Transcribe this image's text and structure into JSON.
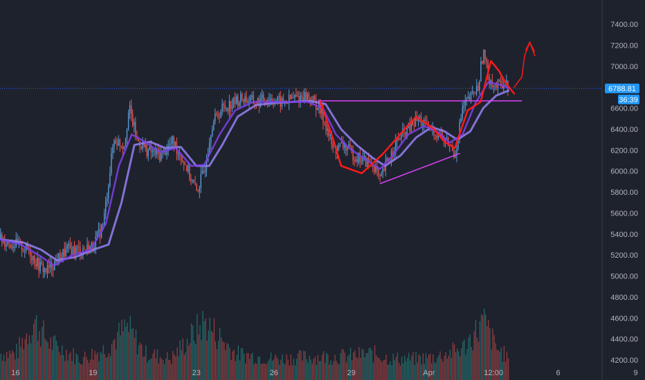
{
  "chart_data": {
    "type": "candlestick",
    "title": "",
    "xlabel": "",
    "ylabel": "",
    "ylim": [
      4150,
      7550
    ],
    "y_ticks": [
      4200,
      4400,
      4600,
      4800,
      5000,
      5200,
      5400,
      5600,
      5800,
      6000,
      6200,
      6400,
      6600,
      6800,
      7000,
      7200,
      7400
    ],
    "y_tick_labels": [
      "4200.00",
      "4400.00",
      "4600.00",
      "4800.00",
      "5000.00",
      "5200.00",
      "5400.00",
      "5600.00",
      "5800.00",
      "6000.00",
      "6200.00",
      "6400.00",
      "6600.00",
      "6800.00",
      "7000.00",
      "7200.00",
      "7400.00"
    ],
    "x_range_days": [
      15.4,
      11.9
    ],
    "x_ticks": [
      {
        "label": "16",
        "day": 16
      },
      {
        "label": "19",
        "day": 19
      },
      {
        "label": "23",
        "day": 23
      },
      {
        "label": "26",
        "day": 26
      },
      {
        "label": "29",
        "day": 29
      },
      {
        "label": "Apr",
        "day": 32
      },
      {
        "label": "12:00",
        "day": 34.5
      },
      {
        "label": "6",
        "day": 37
      },
      {
        "label": "9",
        "day": 40
      }
    ],
    "price_path": [
      [
        15.4,
        5350
      ],
      [
        16.0,
        5300
      ],
      [
        16.5,
        5250
      ],
      [
        16.9,
        5100
      ],
      [
        17.2,
        5050
      ],
      [
        17.6,
        5150
      ],
      [
        18.0,
        5250
      ],
      [
        18.5,
        5250
      ],
      [
        19.0,
        5280
      ],
      [
        19.4,
        5500
      ],
      [
        19.8,
        6300
      ],
      [
        20.2,
        6250
      ],
      [
        20.4,
        6600
      ],
      [
        20.7,
        6300
      ],
      [
        21.1,
        6200
      ],
      [
        21.6,
        6150
      ],
      [
        22.1,
        6280
      ],
      [
        22.6,
        6050
      ],
      [
        23.0,
        5800
      ],
      [
        23.3,
        6000
      ],
      [
        23.6,
        6450
      ],
      [
        24.0,
        6600
      ],
      [
        24.4,
        6650
      ],
      [
        24.8,
        6700
      ],
      [
        25.3,
        6650
      ],
      [
        25.8,
        6700
      ],
      [
        26.3,
        6650
      ],
      [
        26.8,
        6700
      ],
      [
        27.3,
        6720
      ],
      [
        27.7,
        6620
      ],
      [
        28.0,
        6450
      ],
      [
        28.3,
        6200
      ],
      [
        28.7,
        6250
      ],
      [
        29.1,
        6150
      ],
      [
        29.5,
        6100
      ],
      [
        29.9,
        6050
      ],
      [
        30.1,
        5900
      ],
      [
        30.4,
        6100
      ],
      [
        30.8,
        6300
      ],
      [
        31.2,
        6400
      ],
      [
        31.6,
        6500
      ],
      [
        32.0,
        6400
      ],
      [
        32.4,
        6350
      ],
      [
        32.8,
        6250
      ],
      [
        33.0,
        6150
      ],
      [
        33.3,
        6600
      ],
      [
        33.6,
        6700
      ],
      [
        33.9,
        6800
      ],
      [
        34.1,
        7150
      ],
      [
        34.3,
        6900
      ],
      [
        34.6,
        6800
      ],
      [
        34.9,
        6850
      ],
      [
        35.1,
        6789
      ]
    ],
    "ema_fast": [
      [
        15.4,
        5350
      ],
      [
        16.2,
        5300
      ],
      [
        16.9,
        5200
      ],
      [
        17.5,
        5100
      ],
      [
        18.2,
        5200
      ],
      [
        18.9,
        5250
      ],
      [
        19.5,
        5500
      ],
      [
        20.0,
        6050
      ],
      [
        20.5,
        6350
      ],
      [
        21.0,
        6280
      ],
      [
        21.6,
        6180
      ],
      [
        22.2,
        6220
      ],
      [
        22.8,
        6050
      ],
      [
        23.3,
        6060
      ],
      [
        23.9,
        6350
      ],
      [
        24.5,
        6580
      ],
      [
        25.2,
        6660
      ],
      [
        25.9,
        6660
      ],
      [
        26.6,
        6660
      ],
      [
        27.3,
        6660
      ],
      [
        27.9,
        6600
      ],
      [
        28.4,
        6350
      ],
      [
        28.9,
        6220
      ],
      [
        29.5,
        6120
      ],
      [
        30.1,
        6020
      ],
      [
        30.6,
        6150
      ],
      [
        31.2,
        6350
      ],
      [
        31.8,
        6430
      ],
      [
        32.3,
        6380
      ],
      [
        32.8,
        6270
      ],
      [
        33.3,
        6350
      ],
      [
        33.8,
        6650
      ],
      [
        34.3,
        6850
      ],
      [
        34.8,
        6820
      ],
      [
        35.1,
        6790
      ]
    ],
    "ema_slow": [
      [
        15.4,
        5350
      ],
      [
        16.3,
        5320
      ],
      [
        17.0,
        5250
      ],
      [
        17.6,
        5150
      ],
      [
        18.3,
        5180
      ],
      [
        19.0,
        5250
      ],
      [
        19.6,
        5300
      ],
      [
        20.1,
        5700
      ],
      [
        20.6,
        6250
      ],
      [
        21.2,
        6280
      ],
      [
        21.8,
        6220
      ],
      [
        22.4,
        6230
      ],
      [
        23.0,
        6050
      ],
      [
        23.5,
        6050
      ],
      [
        24.0,
        6250
      ],
      [
        24.6,
        6520
      ],
      [
        25.3,
        6630
      ],
      [
        26.0,
        6650
      ],
      [
        26.7,
        6660
      ],
      [
        27.4,
        6670
      ],
      [
        28.0,
        6640
      ],
      [
        28.6,
        6400
      ],
      [
        29.2,
        6250
      ],
      [
        29.8,
        6130
      ],
      [
        30.3,
        6050
      ],
      [
        30.9,
        6150
      ],
      [
        31.5,
        6320
      ],
      [
        32.1,
        6420
      ],
      [
        32.6,
        6380
      ],
      [
        33.1,
        6300
      ],
      [
        33.6,
        6380
      ],
      [
        34.1,
        6600
      ],
      [
        34.6,
        6720
      ],
      [
        35.1,
        6770
      ]
    ],
    "volume_profile": [
      [
        16,
        0.25
      ],
      [
        16.7,
        0.55
      ],
      [
        17.3,
        0.35
      ],
      [
        18.5,
        0.2
      ],
      [
        19.5,
        0.3
      ],
      [
        20.3,
        0.5
      ],
      [
        21,
        0.25
      ],
      [
        22,
        0.2
      ],
      [
        23.3,
        0.55
      ],
      [
        24.5,
        0.25
      ],
      [
        26,
        0.2
      ],
      [
        27.5,
        0.22
      ],
      [
        28.5,
        0.22
      ],
      [
        29.8,
        0.25
      ],
      [
        30.5,
        0.2
      ],
      [
        31.5,
        0.2
      ],
      [
        32.3,
        0.22
      ],
      [
        33.3,
        0.3
      ],
      [
        34.1,
        0.55
      ],
      [
        34.6,
        0.3
      ],
      [
        35.1,
        0.2
      ]
    ],
    "last_price": 6788.81,
    "last_price_label": "6788.81",
    "countdown": "36:39",
    "annotations": {
      "resistance_line": [
        [
          27.7,
          6670
        ],
        [
          35.6,
          6670
        ]
      ],
      "support_line": [
        [
          30.1,
          5880
        ],
        [
          33.2,
          6170
        ]
      ],
      "w_pattern": [
        [
          27.8,
          6660
        ],
        [
          28.3,
          6300
        ],
        [
          28.6,
          6050
        ],
        [
          29.4,
          5980
        ],
        [
          30.2,
          6160
        ],
        [
          31.1,
          6410
        ],
        [
          31.5,
          6520
        ],
        [
          32.2,
          6400
        ],
        [
          32.6,
          6280
        ],
        [
          33.0,
          6220
        ],
        [
          33.5,
          6580
        ],
        [
          34.0,
          6660
        ],
        [
          34.4,
          7050
        ],
        [
          34.7,
          6960
        ],
        [
          35.0,
          6830
        ],
        [
          35.3,
          6740
        ]
      ],
      "arrow_path": [
        [
          35.3,
          6800
        ],
        [
          35.6,
          6900
        ],
        [
          35.7,
          7100
        ],
        [
          35.9,
          7230
        ],
        [
          36.1,
          7100
        ]
      ]
    },
    "colors": {
      "background": "#1e222d",
      "up": "#5b9bd5",
      "down": "#ef5350",
      "ema_fast": "#7b3fe4",
      "ema_slow": "#8e7be8",
      "price_line": "#2962ff",
      "price_tag": "#2196f3",
      "annotation_red": "#ff1a1a",
      "annotation_magenta": "#e040fb",
      "axis_text": "#b2b5be",
      "volume_up": "#26a69a",
      "volume_down": "#ef5350"
    }
  }
}
